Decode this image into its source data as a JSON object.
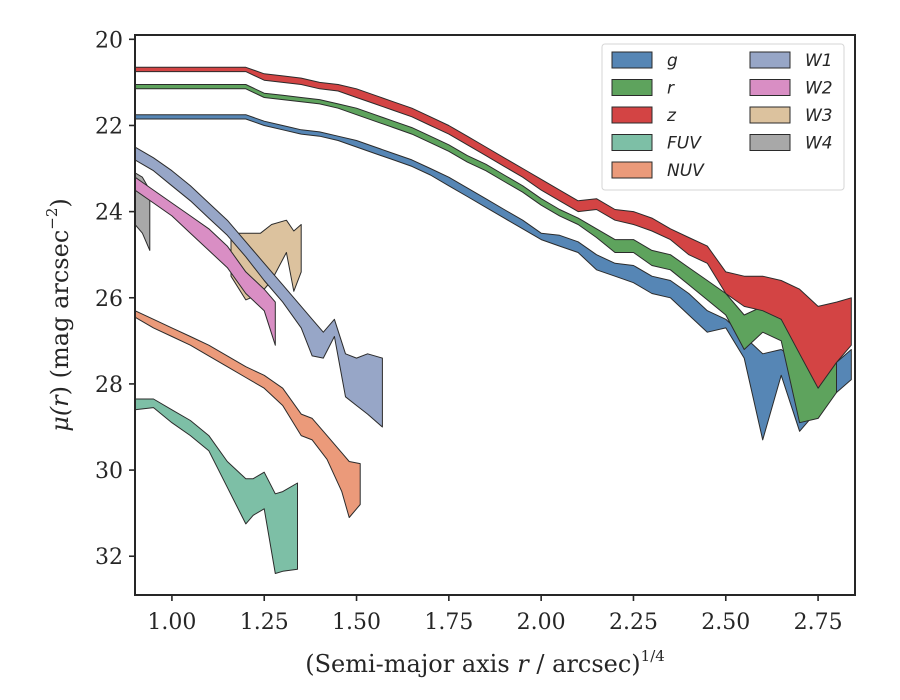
{
  "chart_data": {
    "type": "area",
    "xlabel_parts": [
      "(Semi-major axis ",
      "r",
      " / arcsec)",
      "1/4"
    ],
    "ylabel_parts": [
      "μ(",
      "r",
      ") (mag arcsec",
      "−2",
      ")"
    ],
    "xlim": [
      0.9,
      2.85
    ],
    "ylim": [
      32.9,
      19.9
    ],
    "y_inverted": true,
    "grid": false,
    "legend_position": "upper-right",
    "legend_columns": 2,
    "x_ticks": [
      {
        "value": 1.0,
        "label": "1.00"
      },
      {
        "value": 1.25,
        "label": "1.25"
      },
      {
        "value": 1.5,
        "label": "1.50"
      },
      {
        "value": 1.75,
        "label": "1.75"
      },
      {
        "value": 2.0,
        "label": "2.00"
      },
      {
        "value": 2.25,
        "label": "2.25"
      },
      {
        "value": 2.5,
        "label": "2.50"
      },
      {
        "value": 2.75,
        "label": "2.75"
      }
    ],
    "y_ticks": [
      {
        "value": 20,
        "label": "20"
      },
      {
        "value": 22,
        "label": "22"
      },
      {
        "value": 24,
        "label": "24"
      },
      {
        "value": 26,
        "label": "26"
      },
      {
        "value": 28,
        "label": "28"
      },
      {
        "value": 30,
        "label": "30"
      },
      {
        "value": 32,
        "label": "32"
      }
    ],
    "series": [
      {
        "name": "W4",
        "color": "#a8a8a8",
        "x": [
          0.9,
          0.92,
          0.94
        ],
        "y_upper": [
          23.1,
          23.2,
          23.5
        ],
        "y_lower": [
          24.3,
          24.5,
          24.9
        ]
      },
      {
        "name": "W3",
        "color": "#dcc29e",
        "x": [
          1.16,
          1.2,
          1.24,
          1.27,
          1.31,
          1.33,
          1.35
        ],
        "y_upper": [
          24.5,
          24.5,
          24.5,
          24.3,
          24.2,
          24.45,
          24.3
        ],
        "y_lower": [
          25.5,
          26.05,
          25.9,
          25.6,
          24.95,
          25.85,
          25.4
        ]
      },
      {
        "name": "W2",
        "color": "#d98ec4",
        "x": [
          0.9,
          0.95,
          1.0,
          1.05,
          1.1,
          1.15,
          1.2,
          1.25,
          1.28
        ],
        "y_upper": [
          23.2,
          23.5,
          23.8,
          24.1,
          24.4,
          24.8,
          25.4,
          25.8,
          26.1
        ],
        "y_lower": [
          23.5,
          23.8,
          24.1,
          24.5,
          24.9,
          25.3,
          25.9,
          26.3,
          27.1
        ]
      },
      {
        "name": "W1",
        "color": "#97a6c7",
        "x": [
          0.9,
          0.95,
          1.0,
          1.05,
          1.1,
          1.15,
          1.2,
          1.25,
          1.3,
          1.35,
          1.38,
          1.41,
          1.44,
          1.47,
          1.5,
          1.53,
          1.57
        ],
        "y_upper": [
          22.5,
          22.75,
          23.05,
          23.4,
          23.8,
          24.2,
          24.7,
          25.2,
          25.7,
          26.2,
          26.5,
          26.8,
          26.5,
          27.3,
          27.4,
          27.3,
          27.4
        ],
        "y_lower": [
          22.8,
          23.05,
          23.4,
          23.75,
          24.15,
          24.55,
          25.05,
          25.6,
          26.1,
          26.7,
          27.35,
          27.4,
          26.9,
          28.3,
          28.5,
          28.7,
          29.0
        ]
      },
      {
        "name": "NUV",
        "color": "#eb9a7a",
        "x": [
          0.9,
          0.95,
          1.0,
          1.05,
          1.1,
          1.15,
          1.2,
          1.25,
          1.3,
          1.35,
          1.38,
          1.42,
          1.46,
          1.48,
          1.51
        ],
        "y_upper": [
          26.3,
          26.5,
          26.7,
          26.9,
          27.1,
          27.35,
          27.6,
          27.8,
          28.1,
          28.7,
          28.8,
          29.2,
          29.6,
          29.8,
          29.85
        ],
        "y_lower": [
          26.45,
          26.7,
          26.9,
          27.1,
          27.35,
          27.6,
          27.85,
          28.1,
          28.5,
          29.2,
          29.3,
          29.75,
          30.5,
          31.1,
          30.8
        ]
      },
      {
        "name": "FUV",
        "color": "#7dbfa6",
        "x": [
          0.9,
          0.95,
          1.0,
          1.05,
          1.1,
          1.15,
          1.2,
          1.22,
          1.25,
          1.28,
          1.3,
          1.34
        ],
        "y_upper": [
          28.35,
          28.35,
          28.6,
          28.85,
          29.2,
          29.8,
          30.2,
          30.2,
          30.05,
          30.55,
          30.5,
          30.3
        ],
        "y_lower": [
          28.6,
          28.55,
          28.9,
          29.2,
          29.55,
          30.4,
          31.25,
          31.05,
          30.9,
          32.4,
          32.35,
          32.3
        ]
      },
      {
        "name": "g",
        "color": "#5686b5",
        "x": [
          0.9,
          1.0,
          1.1,
          1.2,
          1.25,
          1.3,
          1.35,
          1.4,
          1.45,
          1.5,
          1.55,
          1.6,
          1.65,
          1.7,
          1.75,
          1.8,
          1.85,
          1.9,
          1.95,
          2.0,
          2.05,
          2.1,
          2.15,
          2.2,
          2.25,
          2.3,
          2.35,
          2.4,
          2.45,
          2.5,
          2.55,
          2.6,
          2.65,
          2.7,
          2.75,
          2.8,
          2.84
        ],
        "y_upper": [
          21.75,
          21.75,
          21.75,
          21.75,
          21.9,
          22.0,
          22.1,
          22.15,
          22.25,
          22.35,
          22.5,
          22.65,
          22.8,
          23.0,
          23.2,
          23.45,
          23.7,
          23.95,
          24.2,
          24.5,
          24.55,
          24.7,
          25.0,
          25.2,
          25.25,
          25.5,
          25.6,
          25.9,
          26.3,
          26.5,
          26.9,
          27.3,
          27.2,
          27.5,
          27.6,
          27.5,
          27.2
        ],
        "y_lower": [
          21.85,
          21.85,
          21.85,
          21.85,
          22.0,
          22.1,
          22.2,
          22.25,
          22.35,
          22.5,
          22.65,
          22.8,
          22.95,
          23.15,
          23.4,
          23.65,
          23.9,
          24.15,
          24.4,
          24.65,
          24.8,
          24.95,
          25.35,
          25.5,
          25.65,
          25.9,
          26.0,
          26.4,
          26.8,
          26.7,
          27.4,
          29.3,
          27.8,
          29.1,
          28.6,
          28.2,
          27.9
        ]
      },
      {
        "name": "r",
        "color": "#5ea35d",
        "x": [
          0.9,
          1.0,
          1.1,
          1.2,
          1.25,
          1.3,
          1.35,
          1.4,
          1.45,
          1.5,
          1.55,
          1.6,
          1.65,
          1.7,
          1.75,
          1.8,
          1.85,
          1.9,
          1.95,
          2.0,
          2.05,
          2.1,
          2.15,
          2.2,
          2.25,
          2.3,
          2.35,
          2.4,
          2.45,
          2.5,
          2.55,
          2.6,
          2.65,
          2.7,
          2.75,
          2.8
        ],
        "y_upper": [
          21.05,
          21.05,
          21.05,
          21.05,
          21.25,
          21.3,
          21.35,
          21.4,
          21.5,
          21.6,
          21.75,
          21.9,
          22.05,
          22.25,
          22.45,
          22.7,
          22.9,
          23.15,
          23.4,
          23.7,
          23.95,
          24.15,
          24.4,
          24.65,
          24.65,
          24.9,
          25.0,
          25.3,
          25.6,
          25.9,
          26.4,
          26.2,
          26.5,
          26.9,
          27.0,
          27.0
        ],
        "y_lower": [
          21.15,
          21.15,
          21.15,
          21.15,
          21.35,
          21.4,
          21.45,
          21.5,
          21.6,
          21.75,
          21.9,
          22.05,
          22.2,
          22.4,
          22.6,
          22.85,
          23.05,
          23.3,
          23.55,
          23.85,
          24.1,
          24.3,
          24.6,
          24.95,
          24.95,
          25.25,
          25.35,
          25.7,
          26.05,
          26.4,
          27.2,
          26.8,
          27.0,
          28.9,
          28.8,
          28.2
        ]
      },
      {
        "name": "z",
        "color": "#d34444",
        "x": [
          0.9,
          1.0,
          1.1,
          1.2,
          1.25,
          1.3,
          1.35,
          1.4,
          1.45,
          1.5,
          1.55,
          1.6,
          1.65,
          1.7,
          1.75,
          1.8,
          1.85,
          1.9,
          1.95,
          2.0,
          2.05,
          2.1,
          2.15,
          2.2,
          2.25,
          2.3,
          2.35,
          2.4,
          2.45,
          2.5,
          2.55,
          2.6,
          2.65,
          2.7,
          2.75,
          2.8,
          2.84
        ],
        "y_upper": [
          20.65,
          20.65,
          20.65,
          20.65,
          20.8,
          20.85,
          20.9,
          21.0,
          21.05,
          21.15,
          21.3,
          21.45,
          21.6,
          21.8,
          22.0,
          22.25,
          22.5,
          22.75,
          23.0,
          23.25,
          23.5,
          23.75,
          23.7,
          23.95,
          24.0,
          24.15,
          24.4,
          24.6,
          24.8,
          25.4,
          25.5,
          25.5,
          25.6,
          25.8,
          26.2,
          26.1,
          26.0
        ],
        "y_lower": [
          20.75,
          20.75,
          20.75,
          20.75,
          20.95,
          21.0,
          21.05,
          21.15,
          21.2,
          21.35,
          21.5,
          21.65,
          21.8,
          22.0,
          22.2,
          22.45,
          22.7,
          22.95,
          23.2,
          23.5,
          23.75,
          24.0,
          23.95,
          24.2,
          24.3,
          24.45,
          24.65,
          25.0,
          25.2,
          25.9,
          26.2,
          26.3,
          26.5,
          27.3,
          28.1,
          27.5,
          27.1
        ]
      }
    ],
    "legend": [
      {
        "name": "g",
        "color": "#5686b5"
      },
      {
        "name": "r",
        "color": "#5ea35d"
      },
      {
        "name": "z",
        "color": "#d34444"
      },
      {
        "name": "FUV",
        "color": "#7dbfa6"
      },
      {
        "name": "NUV",
        "color": "#eb9a7a"
      },
      {
        "name": "W1",
        "color": "#97a6c7"
      },
      {
        "name": "W2",
        "color": "#d98ec4"
      },
      {
        "name": "W3",
        "color": "#dcc29e"
      },
      {
        "name": "W4",
        "color": "#a8a8a8"
      }
    ]
  }
}
